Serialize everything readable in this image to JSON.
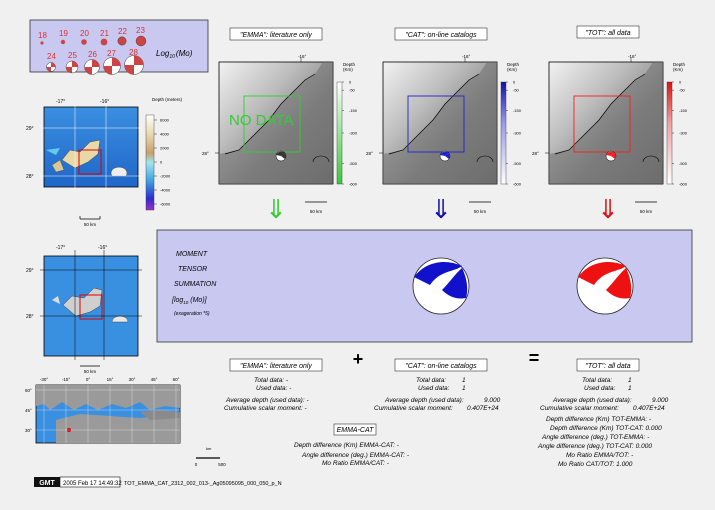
{
  "legend": {
    "magnitudes_top": [
      "18",
      "19",
      "20",
      "21",
      "22",
      "23"
    ],
    "magnitudes_bottom": [
      "24",
      "25",
      "26",
      "27",
      "28"
    ],
    "log_label": "Log",
    "log_sub": "10",
    "log_unit": "(Mo)"
  },
  "panels": [
    {
      "title": "\"EMMA\": literature only",
      "color": "#33cc33",
      "no_data": "NO DATA"
    },
    {
      "title": "\"CAT\": on-line catalogs",
      "color": "#2222cc",
      "no_data": ""
    },
    {
      "title": "\"TOT\": all data",
      "color": "#ee2222",
      "no_data": ""
    }
  ],
  "map_labels": {
    "lon_16": "-16°",
    "lon_17": "-17°",
    "lat_29": "29°",
    "lat_28": "28°",
    "scale_50km": "50 km",
    "depth_km": "Depth\n(Km)",
    "depth_meters": "Depth\n(meters)",
    "depth_ticks": [
      "0",
      "-50",
      "-150",
      "-300",
      "-500",
      "-600"
    ],
    "topo_ticks": [
      "6000",
      "4000",
      "2000",
      "0",
      "-2000",
      "-4000",
      "-6000"
    ]
  },
  "world_map": {
    "lon_ticks": [
      "-30°",
      "-15°",
      "0°",
      "15°",
      "30°",
      "45°",
      "60°"
    ],
    "lat_ticks": [
      "60°",
      "45°",
      "30°"
    ],
    "scale_label": "km",
    "scale_ticks": [
      "0",
      "500"
    ]
  },
  "moment": {
    "line1": "MOMENT",
    "line2": "TENSOR",
    "line3": "SUMMATION",
    "line4": "[log",
    "line4_sub": "10",
    "line4_end": " (Mo)]",
    "line5": "(exageration *5)"
  },
  "arrows": [
    "⇓",
    "⇓",
    "⇓"
  ],
  "operators": {
    "plus": "+",
    "equals": "="
  },
  "stats": {
    "emma": {
      "title": "\"EMMA\": literature only",
      "total": "Total data: -",
      "used": "Used data: -",
      "avg": "Average depth (used data): -",
      "cum": "Cumulative scalar moment: -"
    },
    "cat": {
      "title": "\"CAT\": on-line catalogs",
      "total": "Total data:",
      "total_v": "1",
      "used": "Used data:",
      "used_v": "1",
      "avg": "Average depth (used data):",
      "avg_v": "9.000",
      "cum": "Cumulative scalar moment:",
      "cum_v": "0.407E+24"
    },
    "tot": {
      "title": "\"TOT\": all data",
      "total": "Total data:",
      "total_v": "1",
      "used": "Used data:",
      "used_v": "1",
      "avg": "Average depth (used data):",
      "avg_v": "9.000",
      "cum": "Cumulative scalar moment:",
      "cum_v": "0.407E+24"
    }
  },
  "diff_tot": [
    "Depth difference (Km) TOT-EMMA: -",
    "Depth difference (Km) TOT-CAT:   0.000",
    "Angle difference (deg.) TOT-EMMA: -",
    "Angle difference (deg.) TOT-CAT:     0.000",
    "Mo Ratio EMMA/TOT: -",
    "Mo Ratio CAT/TOT:    1.000"
  ],
  "emma_cat": {
    "title": "EMMA-CAT",
    "lines": [
      "Depth difference (Km) EMMA-CAT: -",
      "Angle difference (deg.) EMMA-CAT: -",
      "Mo Ratio EMMA/CAT: -"
    ]
  },
  "footer": {
    "logo": "GMT",
    "timestamp": "2005 Feb 17 14:49:32",
    "filename": "TOT_EMMA_CAT_2312_002_013-_Ag05095095_000_050_p_N"
  }
}
